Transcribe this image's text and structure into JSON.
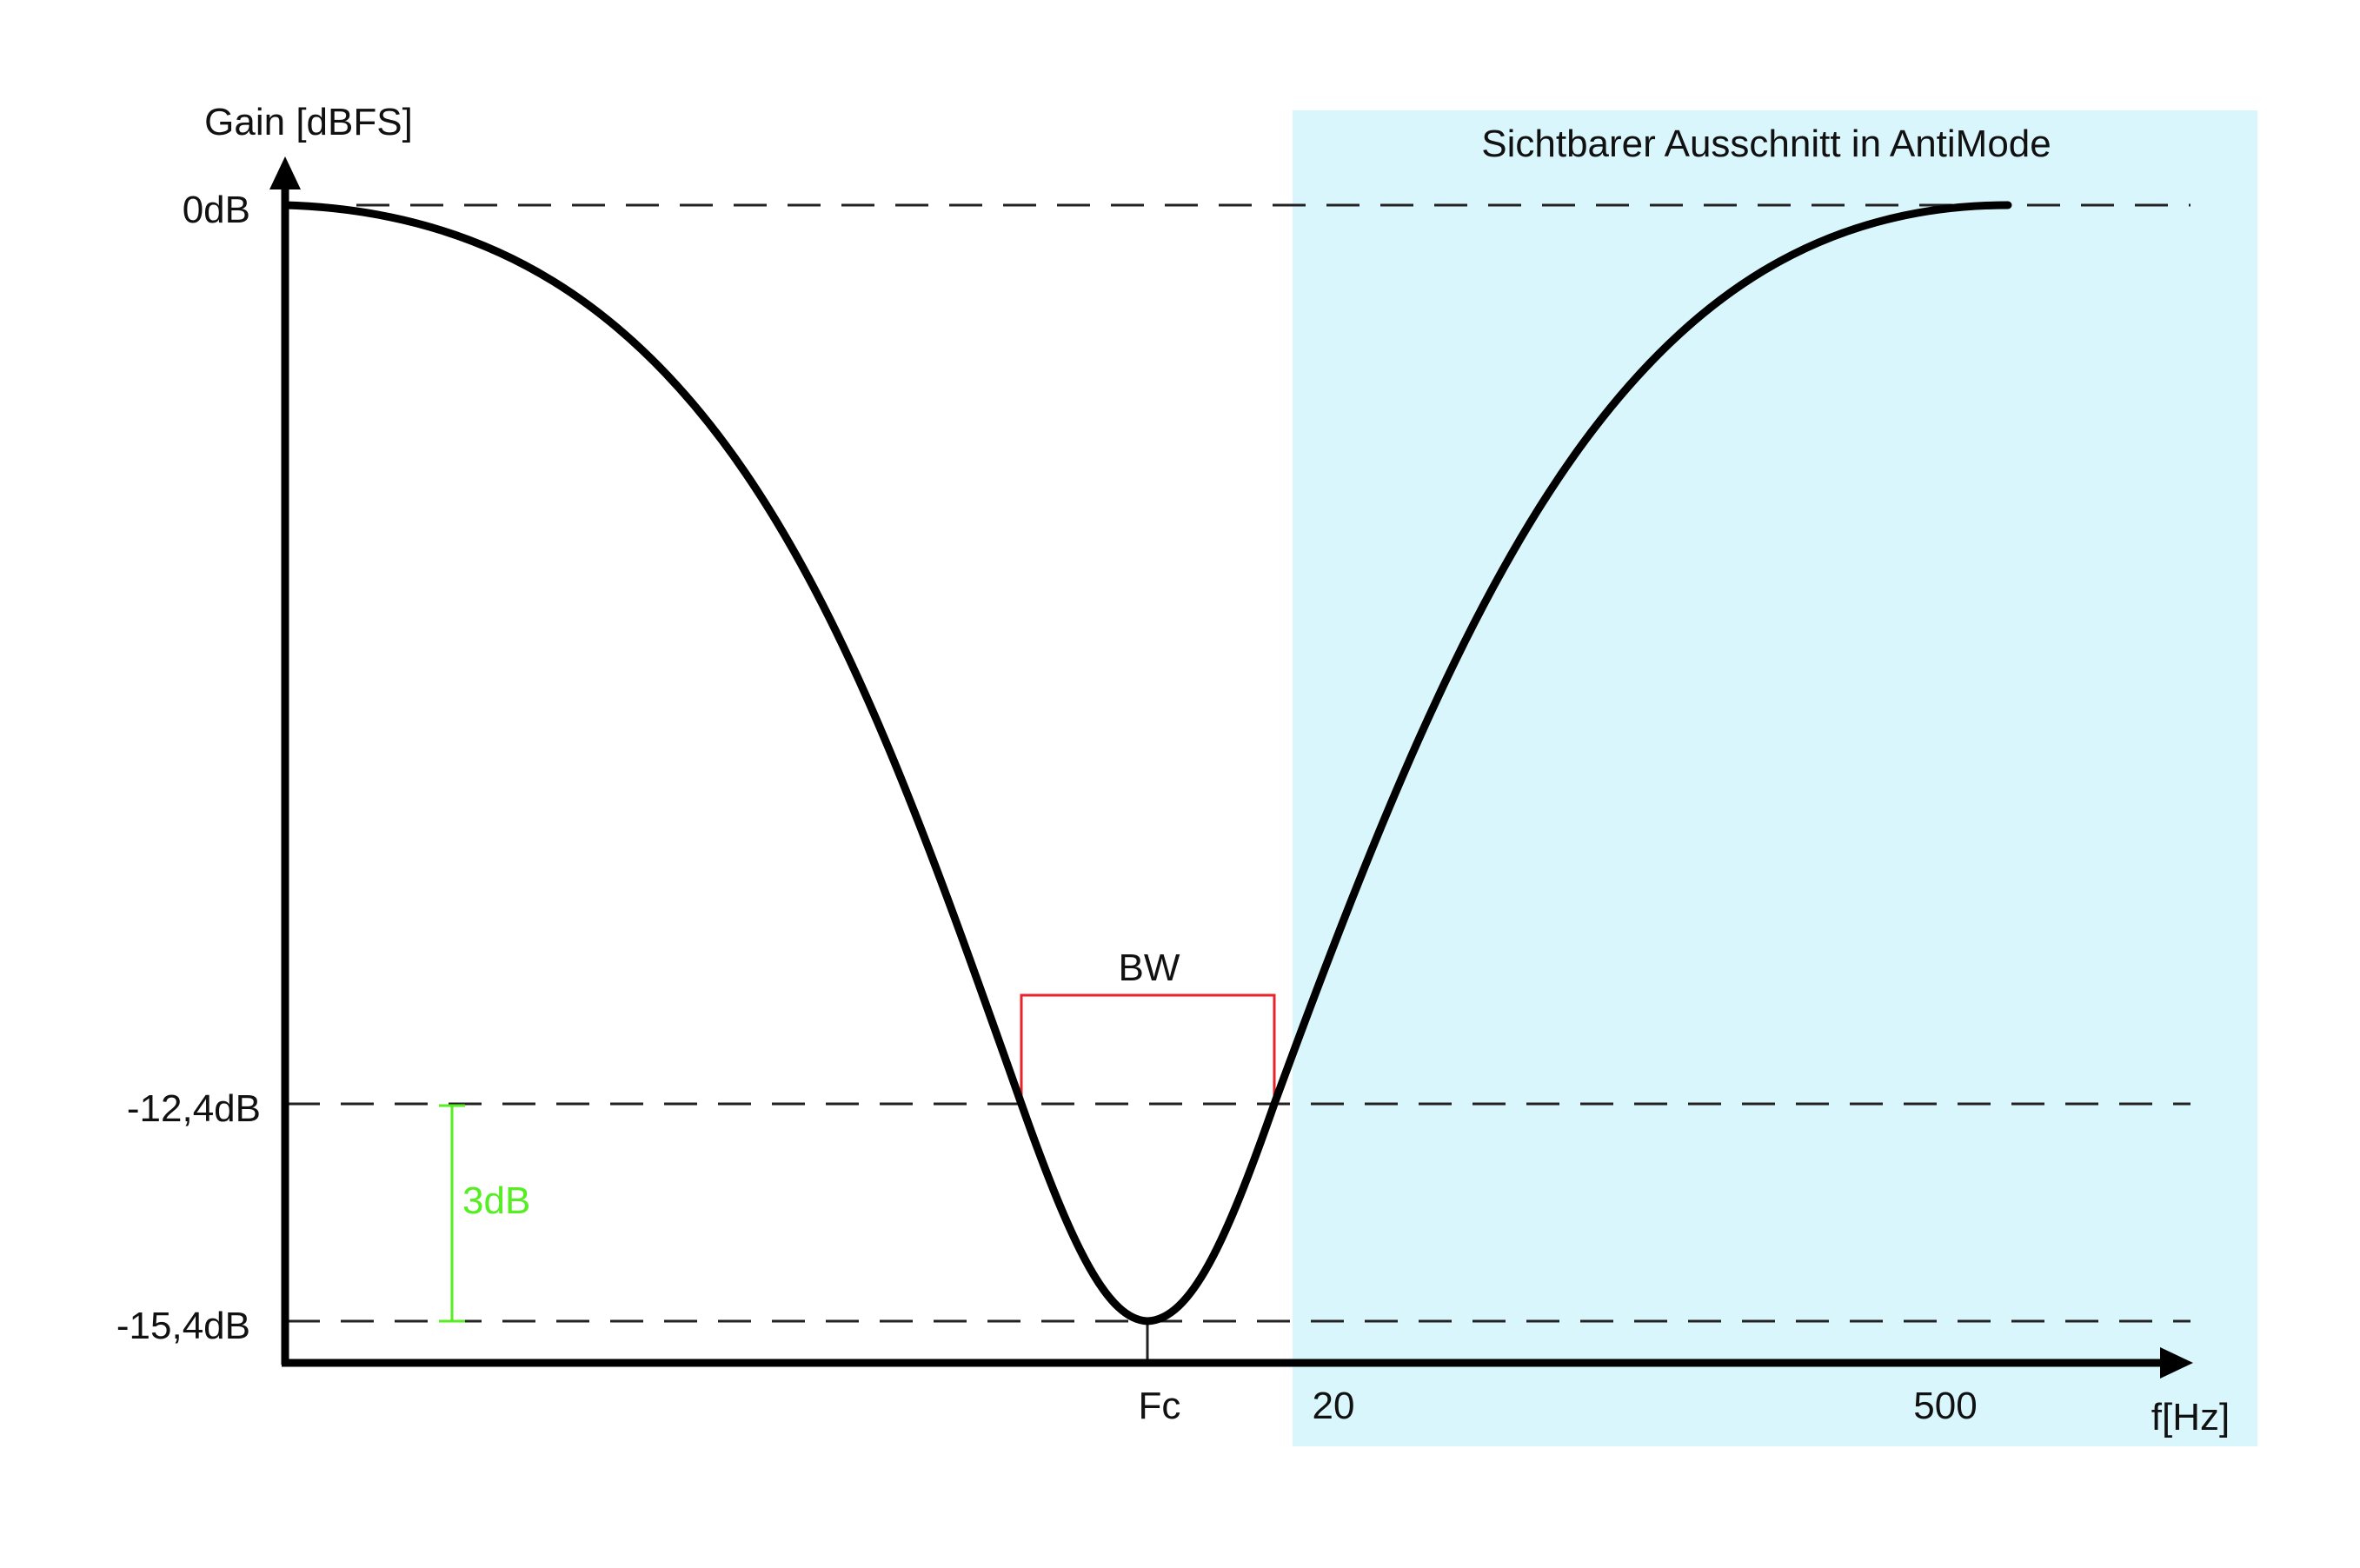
{
  "y_axis_label": "Gain [dBFS]",
  "x_axis_label": "f[Hz]",
  "y_ticks": [
    "0dB",
    "-12,4dB",
    "-15,4dB"
  ],
  "x_ticks": [
    "Fc",
    "20",
    "500"
  ],
  "region_label": "Sichtbarer Ausschnitt in AntiMode",
  "bandwidth_label": "BW",
  "delta_label": "3dB",
  "colors": {
    "curve": "#000000",
    "region_fill": "#d9f6fc",
    "bandwidth": "#e8232a",
    "delta": "#55ee22",
    "guides": "#222222"
  },
  "chart_data": {
    "type": "line",
    "description_series": "notch filter gain curve",
    "levels_db": [
      0,
      -12.4,
      -15.4
    ],
    "min_gain_db": -15.4,
    "bandwidth_level_db": -12.4,
    "delta_db": 3
  }
}
